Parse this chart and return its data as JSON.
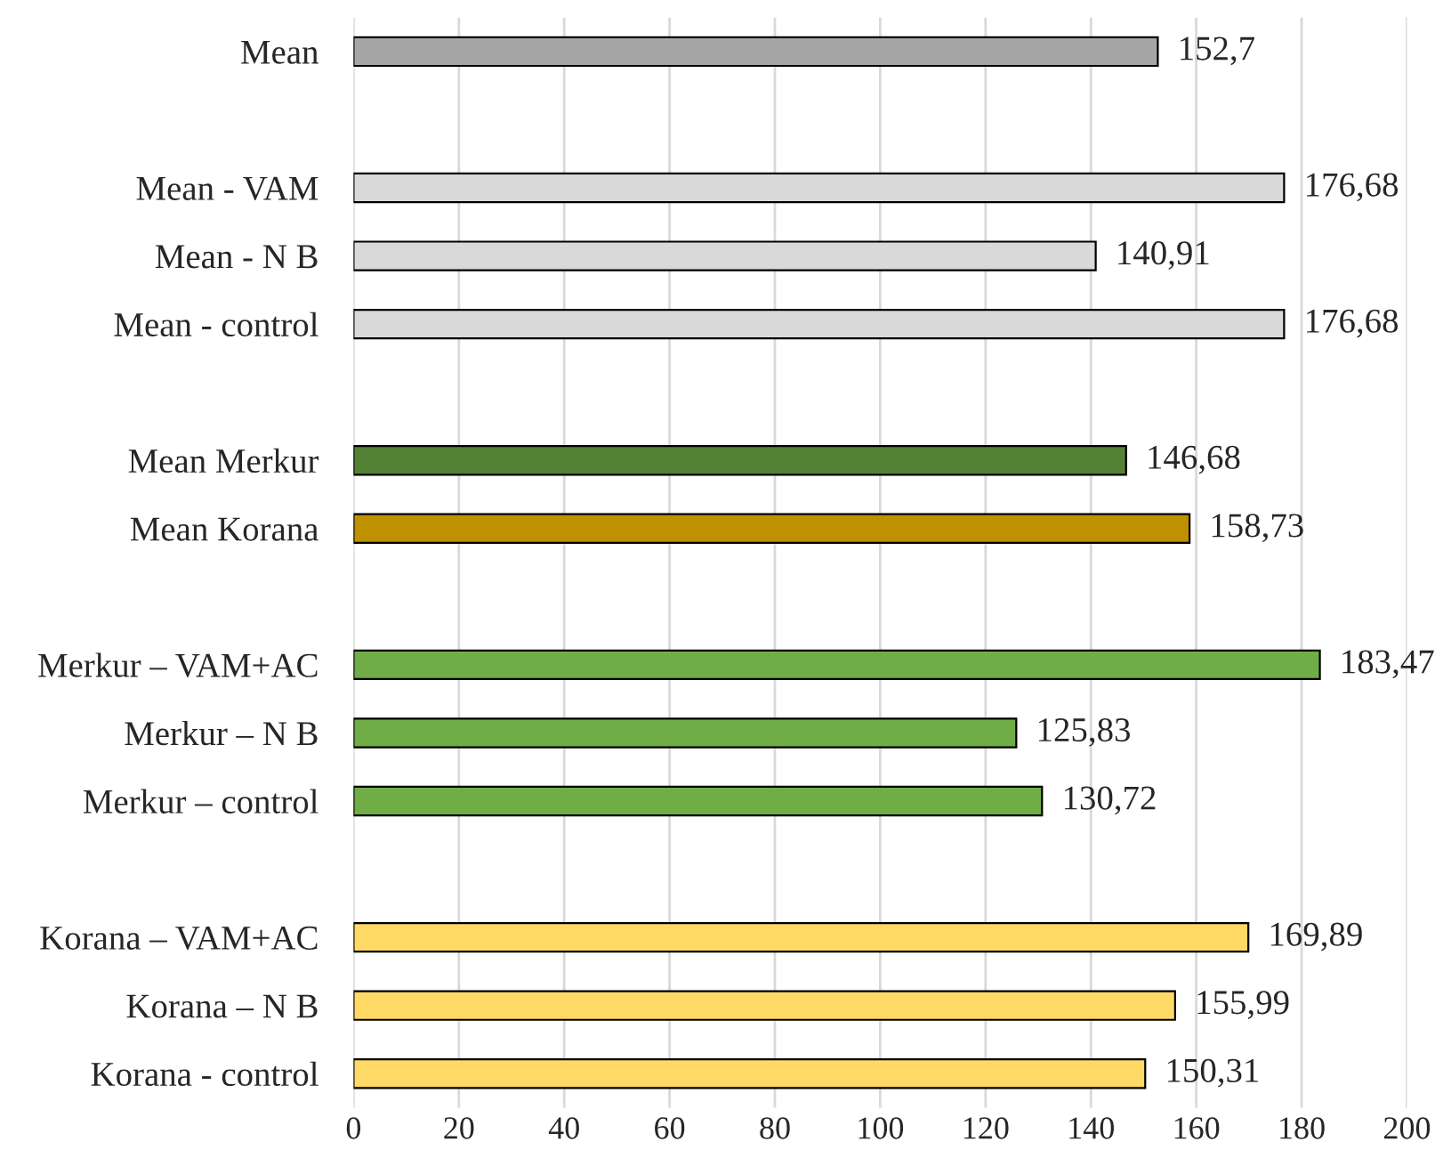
{
  "chart_data": {
    "type": "bar",
    "orientation": "horizontal",
    "categories": [
      "Mean",
      null,
      "Mean - VAM",
      "Mean - N B",
      "Mean - control",
      null,
      "Mean Merkur",
      "Mean Korana",
      null,
      "Merkur – VAM+AC",
      "Merkur – N B",
      "Merkur – control",
      null,
      "Korana – VAM+AC",
      "Korana – N B",
      "Korana - control"
    ],
    "values": [
      152.7,
      null,
      176.68,
      140.91,
      176.68,
      null,
      146.68,
      158.73,
      null,
      183.47,
      125.83,
      130.72,
      null,
      169.89,
      155.99,
      150.31
    ],
    "colors": [
      "#a6a6a6",
      null,
      "#d9d9d9",
      "#d9d9d9",
      "#d9d9d9",
      null,
      "#548235",
      "#bf9000",
      null,
      "#70ad47",
      "#70ad47",
      "#70ad47",
      null,
      "#ffd966",
      "#ffd966",
      "#ffd966"
    ],
    "value_labels": [
      "152,7",
      null,
      "176,68",
      "140,91",
      "176,68",
      null,
      "146,68",
      "158,73",
      null,
      "183,47",
      "125,83",
      "130,72",
      null,
      "169,89",
      "155,99",
      "150,31"
    ],
    "xlim": [
      0,
      200
    ],
    "xticks": [
      0,
      20,
      40,
      60,
      80,
      100,
      120,
      140,
      160,
      180,
      200
    ],
    "grid": "x",
    "legend": false
  }
}
